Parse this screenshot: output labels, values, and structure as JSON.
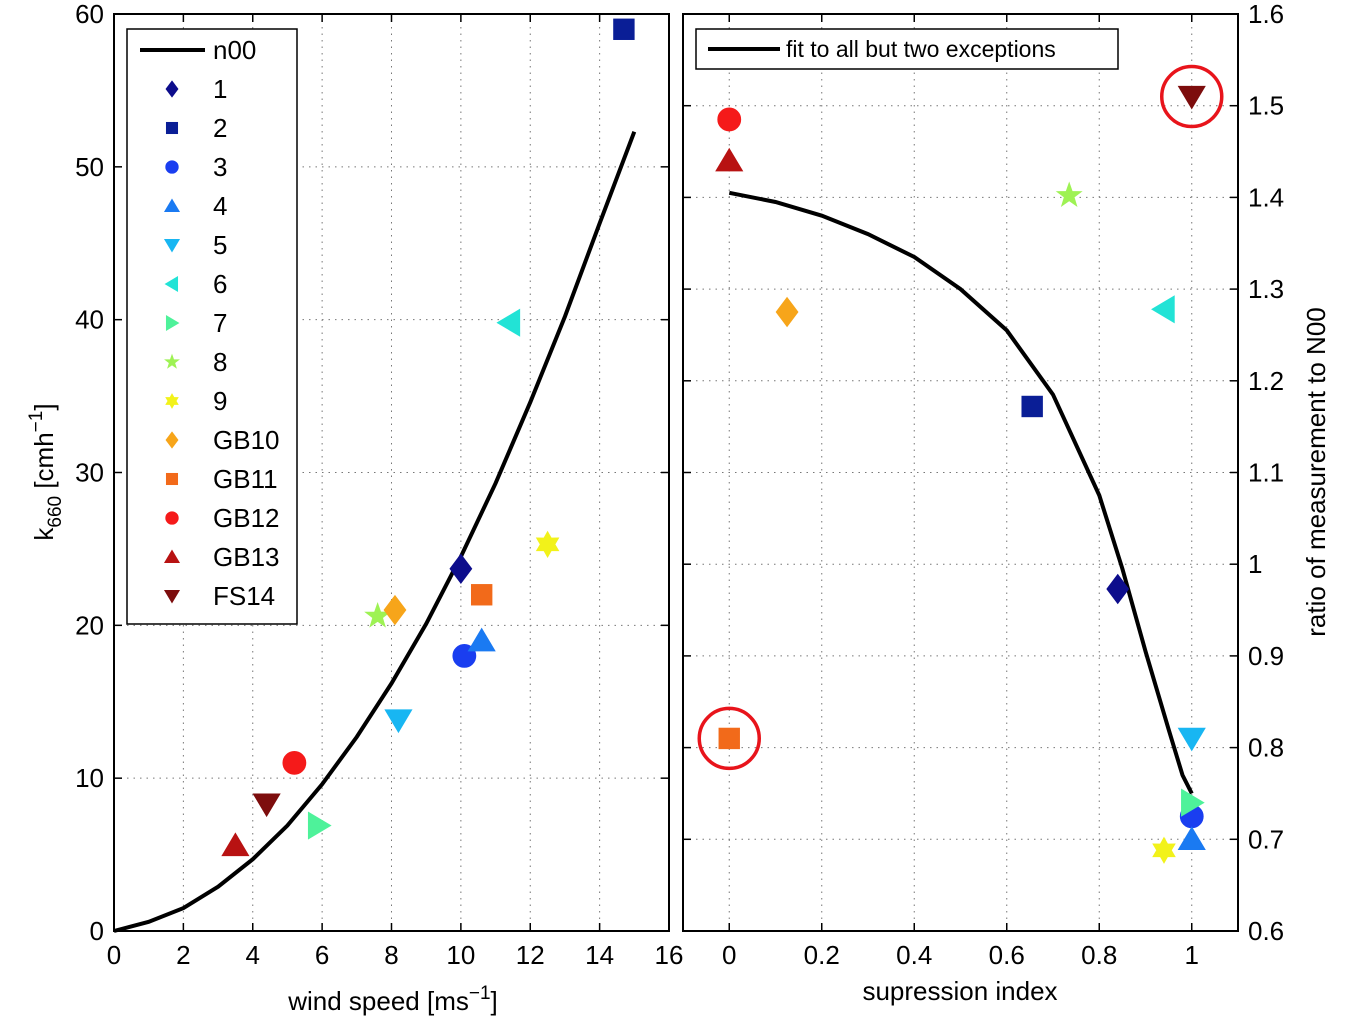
{
  "chart_data": [
    {
      "type": "scatter",
      "xlabel": "wind speed [ms",
      "xlabel_sup": "−1",
      "xlabel_end": "]",
      "ylabel": "k",
      "ylabel_sub": "660",
      "ylabel_mid": " [cmh",
      "ylabel_sup": "−1",
      "ylabel_end": "]",
      "xlim": [
        0,
        16
      ],
      "ylim": [
        0,
        60
      ],
      "xticks": [
        0,
        2,
        4,
        6,
        8,
        10,
        12,
        14,
        16
      ],
      "yticks": [
        0,
        10,
        20,
        30,
        40,
        50,
        60
      ],
      "grid": true,
      "legend_position": "top-left",
      "line": {
        "name": "n00",
        "x": [
          0,
          1,
          2,
          3,
          4,
          5,
          6,
          7,
          8,
          9,
          10,
          11,
          12,
          13,
          14,
          15
        ],
        "y": [
          0,
          0.6,
          1.5,
          2.9,
          4.7,
          6.9,
          9.6,
          12.7,
          16.2,
          20.1,
          24.5,
          29.3,
          34.6,
          40.2,
          46.3,
          52.3
        ]
      },
      "series": [
        {
          "name": "1",
          "marker": "diamond",
          "color": "#0d0d8c",
          "x": [
            10.0
          ],
          "y": [
            23.7
          ]
        },
        {
          "name": "2",
          "marker": "square",
          "color": "#0a1e96",
          "x": [
            14.7
          ],
          "y": [
            59.0
          ]
        },
        {
          "name": "3",
          "marker": "circle",
          "color": "#1a3ef0",
          "x": [
            10.1
          ],
          "y": [
            18.0
          ]
        },
        {
          "name": "4",
          "marker": "triangle-up",
          "color": "#1a7af2",
          "x": [
            10.6
          ],
          "y": [
            19.0
          ]
        },
        {
          "name": "5",
          "marker": "triangle-down",
          "color": "#18b6f2",
          "x": [
            8.2
          ],
          "y": [
            13.8
          ]
        },
        {
          "name": "6",
          "marker": "triangle-left",
          "color": "#22e3d6",
          "x": [
            11.4
          ],
          "y": [
            39.8
          ]
        },
        {
          "name": "7",
          "marker": "triangle-right",
          "color": "#4ef29a",
          "x": [
            5.9
          ],
          "y": [
            6.9
          ]
        },
        {
          "name": "8",
          "marker": "star",
          "color": "#9ef254",
          "x": [
            7.6
          ],
          "y": [
            20.6
          ]
        },
        {
          "name": "9",
          "marker": "hexagram",
          "color": "#f2f21a",
          "x": [
            12.5
          ],
          "y": [
            25.3
          ]
        },
        {
          "name": "GB10",
          "marker": "diamond",
          "color": "#f7a51a",
          "x": [
            8.1
          ],
          "y": [
            21.0
          ]
        },
        {
          "name": "GB11",
          "marker": "square",
          "color": "#f26a1a",
          "x": [
            10.6
          ],
          "y": [
            22.0
          ]
        },
        {
          "name": "GB12",
          "marker": "circle",
          "color": "#f51a1a",
          "x": [
            5.2
          ],
          "y": [
            11.0
          ]
        },
        {
          "name": "GB13",
          "marker": "triangle-up",
          "color": "#b81212",
          "x": [
            3.5
          ],
          "y": [
            5.6
          ]
        },
        {
          "name": "FS14",
          "marker": "triangle-down",
          "color": "#7d0d0d",
          "x": [
            4.4
          ],
          "y": [
            8.3
          ]
        }
      ]
    },
    {
      "type": "scatter",
      "xlabel": "supression index",
      "ylabel": "ratio of measurement to N00",
      "xlim": [
        -0.1,
        1.1
      ],
      "ylim": [
        0.6,
        1.6
      ],
      "xticks": [
        0,
        0.2,
        0.4,
        0.6,
        0.8,
        1
      ],
      "yticks": [
        0.6,
        0.7,
        0.8,
        0.9,
        1,
        1.1,
        1.2,
        1.3,
        1.4,
        1.5,
        1.6
      ],
      "yaxis_side": "right",
      "grid": true,
      "legend_position": "top",
      "line": {
        "name": "fit to all but two exceptions",
        "x": [
          0,
          0.1,
          0.2,
          0.3,
          0.4,
          0.5,
          0.6,
          0.7,
          0.8,
          0.85,
          0.9,
          0.95,
          0.98,
          1.0
        ],
        "y": [
          1.405,
          1.395,
          1.38,
          1.36,
          1.335,
          1.3,
          1.255,
          1.185,
          1.075,
          0.995,
          0.905,
          0.82,
          0.77,
          0.75
        ]
      },
      "points": [
        {
          "series": "1",
          "marker": "diamond",
          "color": "#0d0d8c",
          "x": 0.84,
          "y": 0.973
        },
        {
          "series": "2",
          "marker": "square",
          "color": "#0a1e96",
          "x": 0.655,
          "y": 1.172
        },
        {
          "series": "3",
          "marker": "circle",
          "color": "#1a3ef0",
          "x": 1.0,
          "y": 0.725
        },
        {
          "series": "4",
          "marker": "triangle-up",
          "color": "#1a7af2",
          "x": 1.0,
          "y": 0.7
        },
        {
          "series": "5",
          "marker": "triangle-down",
          "color": "#18b6f2",
          "x": 1.0,
          "y": 0.81
        },
        {
          "series": "6",
          "marker": "triangle-left",
          "color": "#22e3d6",
          "x": 0.94,
          "y": 1.278
        },
        {
          "series": "7",
          "marker": "triangle-right",
          "color": "#4ef29a",
          "x": 1.0,
          "y": 0.74
        },
        {
          "series": "8",
          "marker": "star",
          "color": "#9ef254",
          "x": 0.735,
          "y": 1.402
        },
        {
          "series": "9",
          "marker": "hexagram",
          "color": "#f2f21a",
          "x": 0.94,
          "y": 0.688
        },
        {
          "series": "GB10",
          "marker": "diamond",
          "color": "#f7a51a",
          "x": 0.125,
          "y": 1.275
        },
        {
          "series": "GB11",
          "marker": "square",
          "color": "#f26a1a",
          "x": 0.0,
          "y": 0.81,
          "circled": true
        },
        {
          "series": "GB12",
          "marker": "circle",
          "color": "#f51a1a",
          "x": 0.0,
          "y": 1.485
        },
        {
          "series": "GB13",
          "marker": "triangle-up",
          "color": "#b81212",
          "x": 0.0,
          "y": 1.44
        },
        {
          "series": "FS14",
          "marker": "triangle-down",
          "color": "#7d0d0d",
          "x": 1.0,
          "y": 1.51,
          "circled": true
        }
      ],
      "annotation_color": "#e8141b"
    }
  ]
}
